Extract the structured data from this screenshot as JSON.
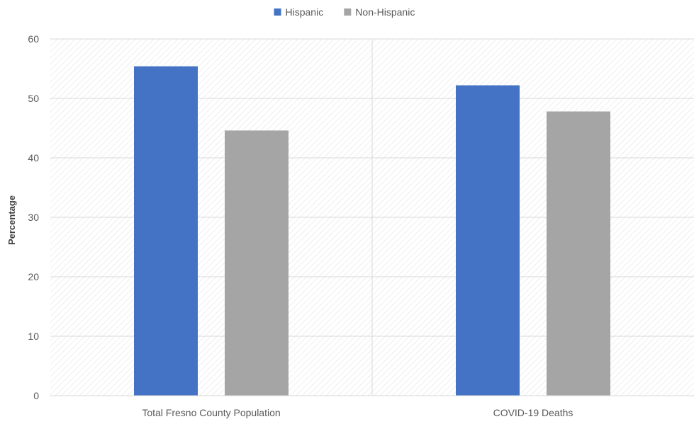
{
  "chart_data": {
    "type": "bar",
    "title": "",
    "xlabel": "",
    "ylabel": "Percentage",
    "categories": [
      "Total Fresno County Population",
      "COVID-19 Deaths"
    ],
    "series": [
      {
        "name": "Hispanic",
        "values": [
          55.4,
          52.2
        ],
        "color": "#4472C4"
      },
      {
        "name": "Non-Hispanic",
        "values": [
          44.6,
          47.8
        ],
        "color": "#A5A5A5"
      }
    ],
    "ylim": [
      0,
      60
    ],
    "yticks": [
      0,
      10,
      20,
      30,
      40,
      50,
      60
    ],
    "grid": true,
    "legend_position": "top-center",
    "background_pattern": "diagonal-hatch"
  }
}
